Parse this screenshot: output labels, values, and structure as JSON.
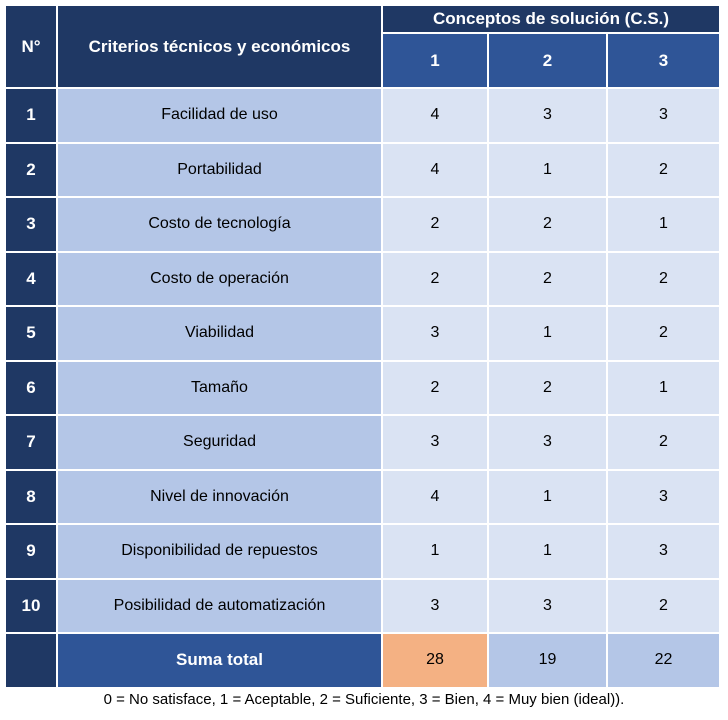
{
  "header": {
    "num_label": "N°",
    "criteria_label": "Criterios técnicos y económicos",
    "concepts_label": "Conceptos de solución (C.S.)",
    "concept_columns": [
      "1",
      "2",
      "3"
    ]
  },
  "rows": [
    {
      "num": "1",
      "criterion": "Facilidad de uso",
      "c1": "4",
      "c2": "3",
      "c3": "3"
    },
    {
      "num": "2",
      "criterion": "Portabilidad",
      "c1": "4",
      "c2": "1",
      "c3": "2"
    },
    {
      "num": "3",
      "criterion": "Costo de tecnología",
      "c1": "2",
      "c2": "2",
      "c3": "1"
    },
    {
      "num": "4",
      "criterion": "Costo de operación",
      "c1": "2",
      "c2": "2",
      "c3": "2"
    },
    {
      "num": "5",
      "criterion": "Viabilidad",
      "c1": "3",
      "c2": "1",
      "c3": "2"
    },
    {
      "num": "6",
      "criterion": "Tamaño",
      "c1": "2",
      "c2": "2",
      "c3": "1"
    },
    {
      "num": "7",
      "criterion": "Seguridad",
      "c1": "3",
      "c2": "3",
      "c3": "2"
    },
    {
      "num": "8",
      "criterion": "Nivel de innovación",
      "c1": "4",
      "c2": "1",
      "c3": "3"
    },
    {
      "num": "9",
      "criterion": "Disponibilidad de repuestos",
      "c1": "1",
      "c2": "1",
      "c3": "3"
    },
    {
      "num": "10",
      "criterion": "Posibilidad de automatización",
      "c1": "3",
      "c2": "3",
      "c3": "2"
    }
  ],
  "total": {
    "label": "Suma total",
    "c1": "28",
    "c2": "19",
    "c3": "22"
  },
  "caption": "0 = No satisface, 1 = Aceptable, 2 = Suficiente, 3 = Bien, 4 = Muy bien (ideal)).",
  "colors": {
    "dark_navy": "#1f3864",
    "mid_blue": "#2f5597",
    "light_blue": "#b4c6e7",
    "pale_blue": "#dae3f3",
    "highlight_orange": "#f4b183"
  }
}
